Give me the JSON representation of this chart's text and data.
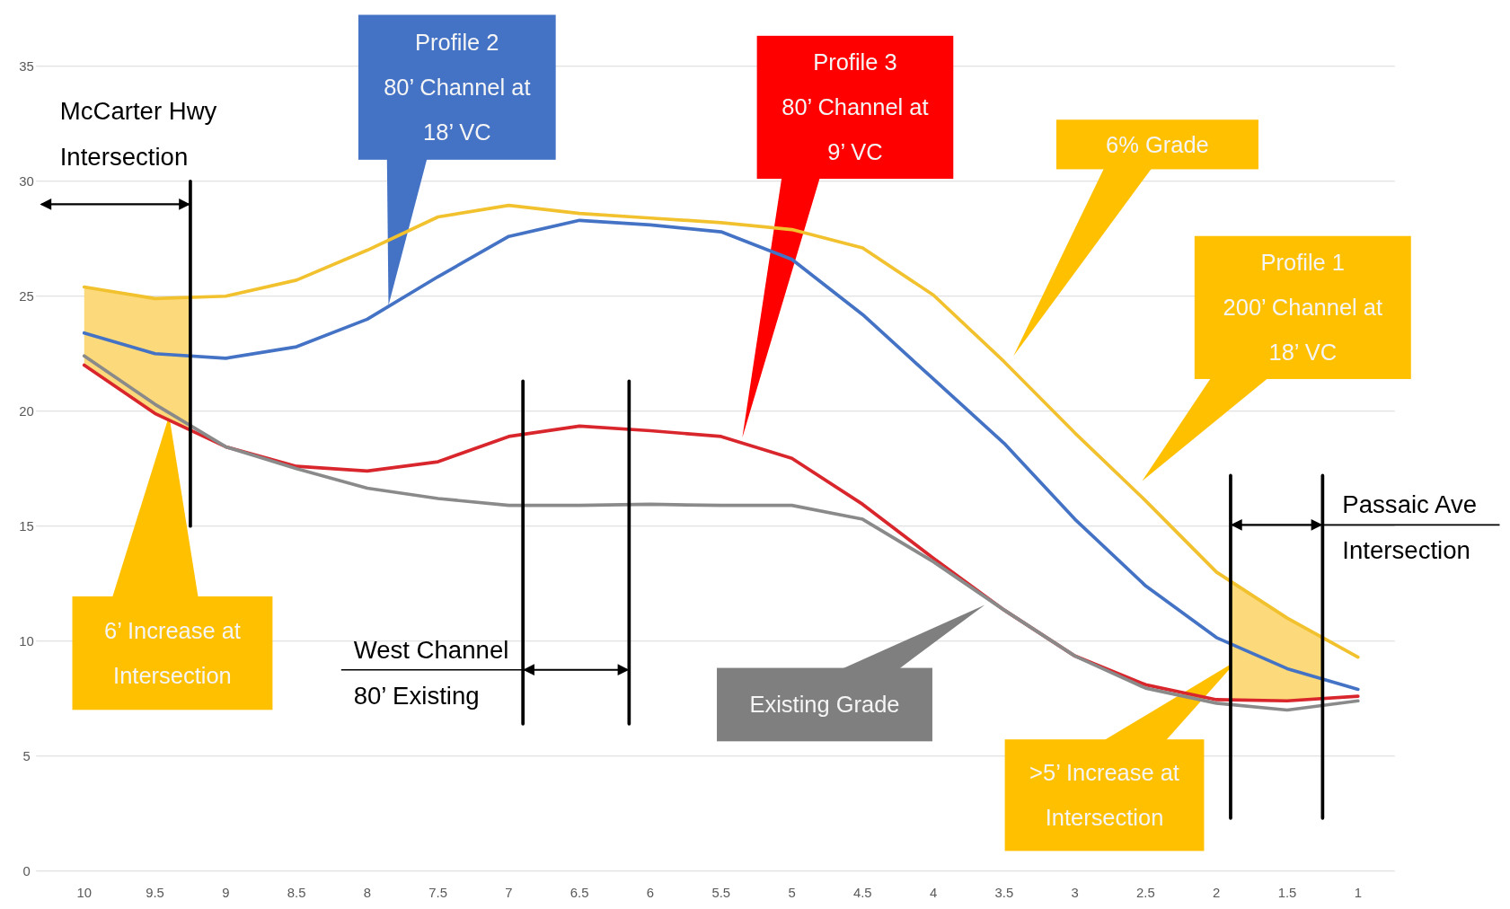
{
  "chart_data": {
    "type": "line",
    "x": [
      10,
      9.5,
      9,
      8.5,
      8,
      7.5,
      7,
      6.5,
      6,
      5.5,
      5,
      4.5,
      4,
      3.5,
      3,
      2.5,
      2,
      1.5,
      1
    ],
    "xlim": [
      10.34,
      0.74
    ],
    "xticks": [
      10,
      9.5,
      9,
      8.5,
      8,
      7.5,
      7,
      6.5,
      6,
      5.5,
      5,
      4.5,
      4,
      3.5,
      3,
      2.5,
      2,
      1.5,
      1
    ],
    "ylim": [
      0,
      35
    ],
    "yticks": [
      0,
      5,
      10,
      15,
      20,
      25,
      30,
      35
    ],
    "grid": "y",
    "series": [
      {
        "color": "#fcd97a",
        "x": [
          10,
          9.5,
          9.25
        ],
        "values": [
          null,
          null,
          null
        ],
        "upper": [
          25.4,
          24.9,
          24.9
        ],
        "lower": [
          22.0,
          19.9,
          19.2
        ]
      },
      {
        "color": "#fcd97a",
        "x": [
          1.9,
          1.5,
          1.25
        ],
        "values": [
          null,
          null,
          null
        ],
        "upper": [
          12.6,
          11.0,
          10.1
        ],
        "lower": [
          7.45,
          7.4,
          7.5
        ]
      },
      {
        "color": "#f2c12e",
        "values": [
          25.4,
          24.9,
          25.0,
          25.7,
          27.0,
          28.45,
          28.95,
          28.6,
          28.4,
          28.2,
          27.9,
          27.1,
          25.05,
          22.15,
          19.05,
          16.1,
          13.0,
          11.0,
          9.3
        ]
      },
      {
        "color": "#4472c4",
        "values": [
          23.4,
          22.5,
          22.3,
          22.8,
          24.0,
          25.85,
          27.6,
          28.3,
          28.1,
          27.8,
          26.6,
          24.2,
          21.4,
          18.6,
          15.3,
          12.4,
          10.15,
          8.8,
          7.9
        ]
      },
      {
        "color": "#d9262c",
        "values": [
          22.0,
          19.9,
          18.45,
          17.6,
          17.4,
          17.8,
          18.9,
          19.35,
          19.15,
          18.9,
          17.95,
          15.95,
          13.6,
          11.35,
          9.35,
          8.1,
          7.45,
          7.4,
          7.6
        ]
      },
      {
        "color": "#8a8a8a",
        "values": [
          22.4,
          20.3,
          18.45,
          17.5,
          16.65,
          16.2,
          15.9,
          15.9,
          15.95,
          15.9,
          15.9,
          15.3,
          13.45,
          11.35,
          9.35,
          7.95,
          7.3,
          7.0,
          7.4
        ]
      },
      {
        "color": "#000000",
        "x": [
          9.25,
          9.25
        ],
        "values": [
          30,
          15
        ]
      },
      {
        "color": "#000000",
        "x": [
          6.9,
          6.9
        ],
        "values": [
          21.3,
          6.4
        ]
      },
      {
        "color": "#000000",
        "x": [
          6.15,
          6.15
        ],
        "values": [
          21.3,
          6.4
        ]
      },
      {
        "color": "#000000",
        "x": [
          1.9,
          1.9
        ],
        "values": [
          17.2,
          2.3
        ]
      },
      {
        "color": "#000000",
        "x": [
          1.25,
          1.25
        ],
        "values": [
          17.2,
          2.3
        ]
      }
    ],
    "annotations": [
      {
        "text": "Profile 2\n80’ Channel at\n18’ VC",
        "x": 7.85,
        "y": 24.6
      },
      {
        "text": "Profile 3\n80’ Channel at\n9’ VC",
        "x": 5.35,
        "y": 18.85
      },
      "6% Grade",
      "Profile 1\n200’ Channel  at\n18’ VC",
      {
        "text": "6’ Increase at\nIntersection",
        "x": 9.4,
        "y": 19.8
      },
      "Existing Grade",
      ">5’ Increase at\nIntersection",
      "McCarter Hwy\nIntersection",
      "West Channel\n80’ Existing",
      "Passaic Ave\nIntersection"
    ]
  }
}
